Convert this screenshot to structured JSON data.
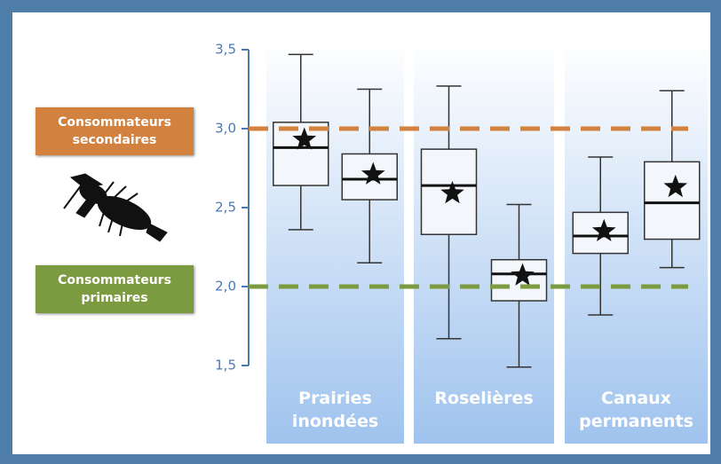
{
  "chart_data": {
    "type": "box",
    "ylim": [
      1.5,
      3.5
    ],
    "yticks": [
      {
        "value": 1.5,
        "label": "1,5"
      },
      {
        "value": 2.0,
        "label": "2,0"
      },
      {
        "value": 2.5,
        "label": "2,5"
      },
      {
        "value": 3.0,
        "label": "3,0"
      },
      {
        "value": 3.5,
        "label": "3,5"
      }
    ],
    "box_color": "#333333",
    "mean_color": "#111111",
    "groups": [
      {
        "label": "Prairies inondées",
        "boxes": [
          {
            "whislo": 2.36,
            "q1": 2.64,
            "med": 2.88,
            "q3": 3.04,
            "whishi": 3.47,
            "mean": 2.93
          },
          {
            "whislo": 2.15,
            "q1": 2.55,
            "med": 2.68,
            "q3": 2.84,
            "whishi": 3.25,
            "mean": 2.71
          }
        ]
      },
      {
        "label": "Roselières",
        "boxes": [
          {
            "whislo": 1.67,
            "q1": 2.33,
            "med": 2.64,
            "q3": 2.87,
            "whishi": 3.27,
            "mean": 2.59
          },
          {
            "whislo": 1.49,
            "q1": 1.91,
            "med": 2.08,
            "q3": 2.17,
            "whishi": 2.52,
            "mean": 2.07
          }
        ]
      },
      {
        "label": "Canaux permanents",
        "boxes": [
          {
            "whislo": 1.82,
            "q1": 2.21,
            "med": 2.32,
            "q3": 2.47,
            "whishi": 2.82,
            "mean": 2.35
          },
          {
            "whislo": 2.12,
            "q1": 2.3,
            "med": 2.53,
            "q3": 2.79,
            "whishi": 3.24,
            "mean": 2.63
          }
        ]
      }
    ],
    "reference_lines": [
      {
        "value": 3.0,
        "label": "Consommateurs secondaires",
        "color": "#d2813f"
      },
      {
        "value": 2.0,
        "label": "Consommateurs primaires",
        "color": "#7c9b40"
      }
    ]
  }
}
